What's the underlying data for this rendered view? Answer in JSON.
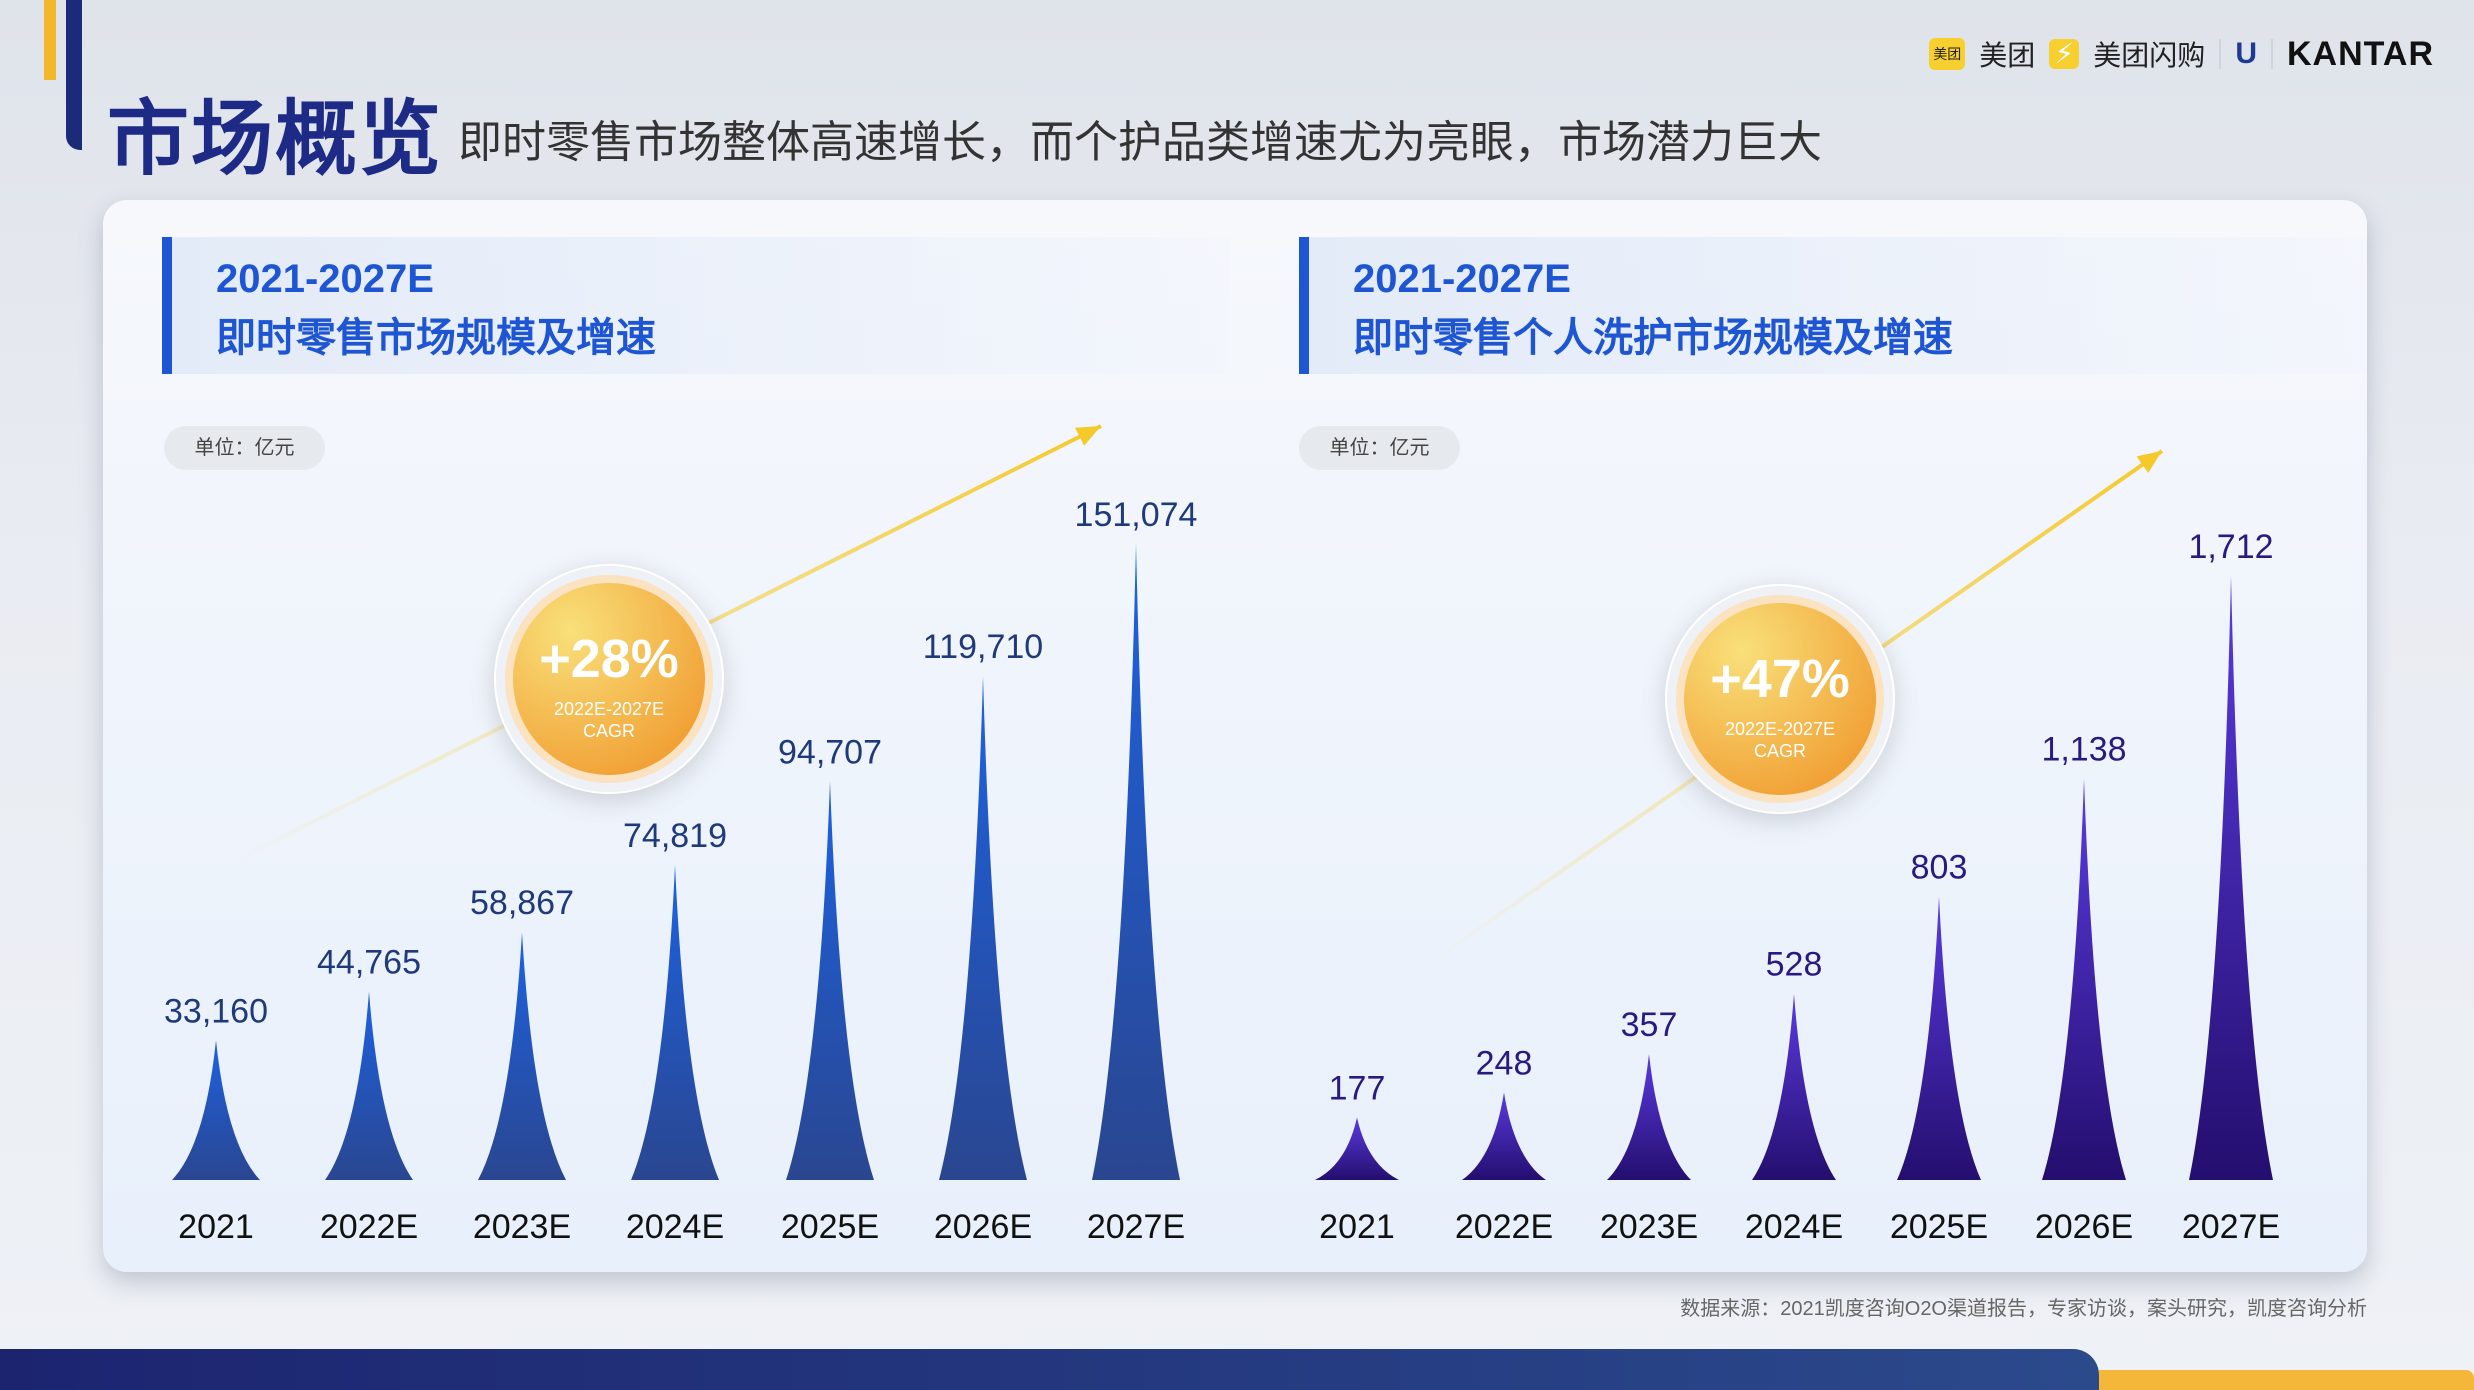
{
  "header": {
    "title": "市场概览",
    "subtitle": "即时零售市场整体高速增长，而个护品类增速尤为亮眼，市场潜力巨大"
  },
  "logos": {
    "meituan_badge": "美团",
    "meituan": "美团",
    "flash": "美团闪购",
    "unilever": "U",
    "kantar": "KANTAR"
  },
  "chart_data": [
    {
      "type": "bar",
      "title_line1": "2021-2027E",
      "title_line2": "即时零售市场规模及增速",
      "unit": "单位：亿元",
      "categories": [
        "2021",
        "2022E",
        "2023E",
        "2024E",
        "2025E",
        "2026E",
        "2027E"
      ],
      "values": [
        33160,
        44765,
        58867,
        74819,
        94707,
        119710,
        151074
      ],
      "labels": [
        "33,160",
        "44,765",
        "58,867",
        "74,819",
        "94,707",
        "119,710",
        "151,074"
      ],
      "cagr": "+28%",
      "cagr_period": "2022E-2027E",
      "cagr_label": "CAGR",
      "color": "#1d55d2",
      "ylim": [
        0,
        151074
      ]
    },
    {
      "type": "bar",
      "title_line1": "2021-2027E",
      "title_line2": "即时零售个人洗护市场规模及增速",
      "unit": "单位：亿元",
      "categories": [
        "2021",
        "2022E",
        "2023E",
        "2024E",
        "2025E",
        "2026E",
        "2027E"
      ],
      "values": [
        177,
        248,
        357,
        528,
        803,
        1138,
        1712
      ],
      "labels": [
        "177",
        "248",
        "357",
        "528",
        "803",
        "1,138",
        "1,712"
      ],
      "cagr": "+47%",
      "cagr_period": "2022E-2027E",
      "cagr_label": "CAGR",
      "color": "#3b1fa8",
      "ylim": [
        0,
        1712
      ]
    }
  ],
  "source": "数据来源：2021凯度咨询O2O渠道报告，专家访谈，案头研究，凯度咨询分析"
}
